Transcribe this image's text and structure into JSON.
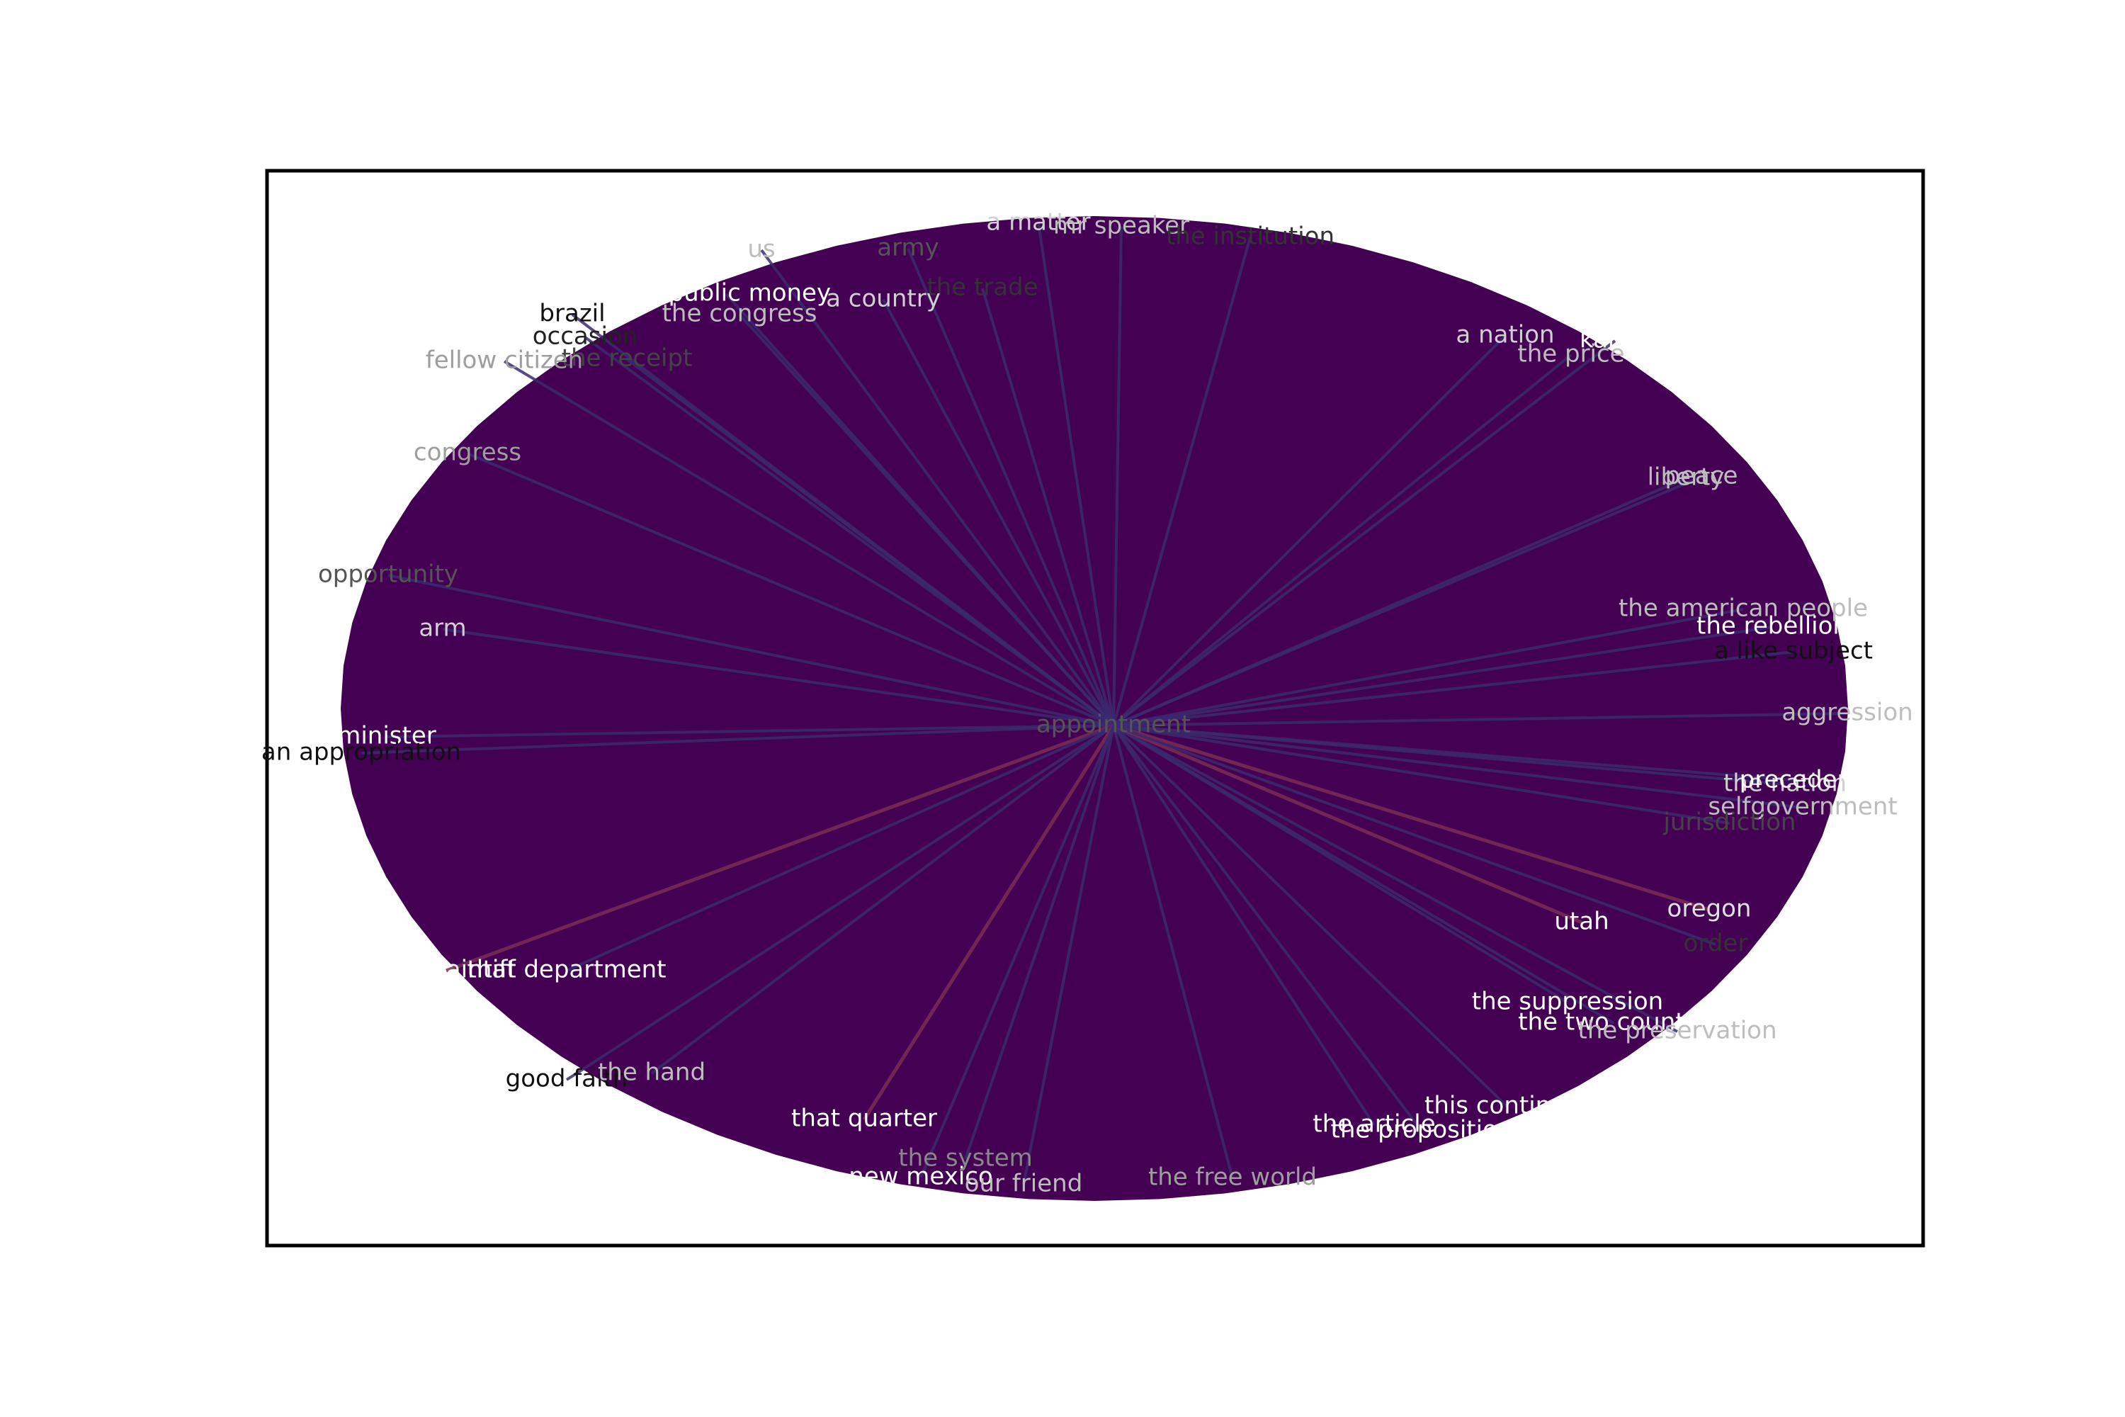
{
  "graph": {
    "type": "star-network",
    "hub": {
      "label": "appointment",
      "color": "#555555"
    },
    "colors": {
      "fill": "#440154",
      "edge": "#3b2a6e",
      "edge_highlight": "#7a2e52",
      "frame": "#000000",
      "background": "#ffffff"
    },
    "nodes": [
      {
        "label": "a matter",
        "color": "#d0d0d0"
      },
      {
        "label": "mr speaker",
        "color": "#bdbdbd"
      },
      {
        "label": "the institution",
        "color": "#333333"
      },
      {
        "label": "us",
        "color": "#bdbdbd"
      },
      {
        "label": "army",
        "color": "#555555"
      },
      {
        "label": "the trade",
        "color": "#333333"
      },
      {
        "label": "a country",
        "color": "#d0d0d0"
      },
      {
        "label": "the public money",
        "color": "#ffffff"
      },
      {
        "label": "the congress",
        "color": "#bdbdbd"
      },
      {
        "label": "brazil",
        "color": "#111111"
      },
      {
        "label": "occasion",
        "color": "#222222"
      },
      {
        "label": "the receipt",
        "color": "#444444"
      },
      {
        "label": "fellow citizen",
        "color": "#9e9e9e"
      },
      {
        "label": "congress",
        "color": "#9e9e9e"
      },
      {
        "label": "opportunity",
        "color": "#555555"
      },
      {
        "label": "arm",
        "color": "#d0d0d0"
      },
      {
        "label": "minister",
        "color": "#ffffff"
      },
      {
        "label": "an appropriation",
        "color": "#111111"
      },
      {
        "label": "the plaintiff",
        "color": "#ffffff"
      },
      {
        "label": "that department",
        "color": "#ffffff"
      },
      {
        "label": "good faith",
        "color": "#111111"
      },
      {
        "label": "the hand",
        "color": "#bdbdbd"
      },
      {
        "label": "that quarter",
        "color": "#ffffff"
      },
      {
        "label": "the system",
        "color": "#888888"
      },
      {
        "label": "new mexico",
        "color": "#ffffff"
      },
      {
        "label": "our friend",
        "color": "#bdbdbd"
      },
      {
        "label": "the free world",
        "color": "#9e9e9e"
      },
      {
        "label": "the article",
        "color": "#ffffff"
      },
      {
        "label": "the proposition",
        "color": "#ffffff"
      },
      {
        "label": "this continent",
        "color": "#ffffff"
      },
      {
        "label": "the suppression",
        "color": "#ffffff"
      },
      {
        "label": "the two country",
        "color": "#ffffff"
      },
      {
        "label": "the preservation",
        "color": "#bdbdbd"
      },
      {
        "label": "utah",
        "color": "#ffffff"
      },
      {
        "label": "oregon",
        "color": "#e0e0e0"
      },
      {
        "label": "order",
        "color": "#333333"
      },
      {
        "label": "the nation",
        "color": "#d0d0d0"
      },
      {
        "label": "precedent",
        "color": "#ffffff"
      },
      {
        "label": "selfgovernment",
        "color": "#bdbdbd"
      },
      {
        "label": "jurisdiction",
        "color": "#444444"
      },
      {
        "label": "aggression",
        "color": "#bdbdbd"
      },
      {
        "label": "the american people",
        "color": "#bdbdbd"
      },
      {
        "label": "the rebellion",
        "color": "#ffffff"
      },
      {
        "label": "a like subject",
        "color": "#111111"
      },
      {
        "label": "liberty",
        "color": "#bdbdbd"
      },
      {
        "label": "peace",
        "color": "#bdbdbd"
      },
      {
        "label": "a nation",
        "color": "#d0d0d0"
      },
      {
        "label": "kansa",
        "color": "#ffffff"
      },
      {
        "label": "the price",
        "color": "#bdbdbd"
      }
    ]
  }
}
